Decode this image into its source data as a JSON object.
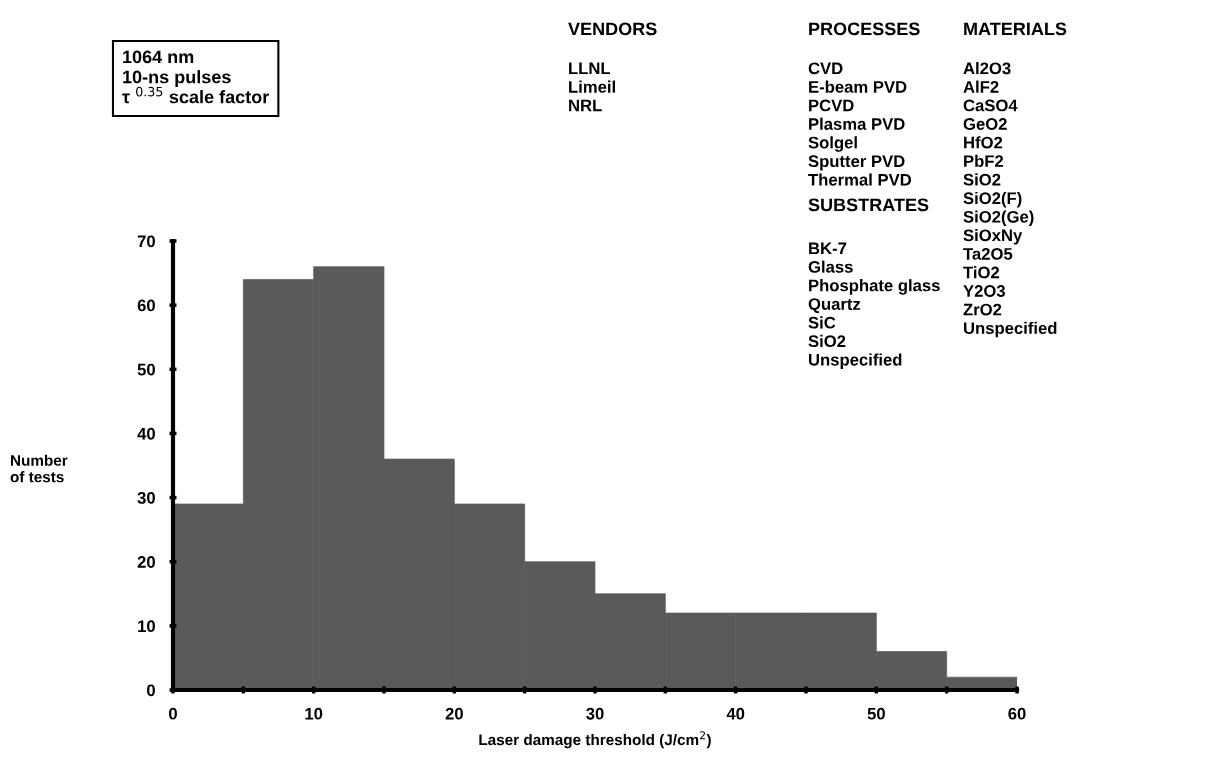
{
  "chart_data": {
    "type": "histogram",
    "xlabel": "Laser damage threshold (J/cm$^{2}$)",
    "ylabel": "Number\nof tests",
    "bins": [
      0,
      5,
      10,
      15,
      20,
      25,
      30,
      35,
      40,
      45,
      50,
      55,
      60
    ],
    "values": [
      29,
      64,
      66,
      36,
      29,
      20,
      15,
      12,
      12,
      12,
      6,
      2
    ],
    "color": "#5a5a5a",
    "xlim": [
      0,
      60
    ],
    "xticks": [
      0,
      {
        "value": 5,
        "label": null
      },
      10,
      {
        "value": 15,
        "label": null
      },
      20,
      {
        "value": 25,
        "label": null
      },
      30,
      {
        "value": 35,
        "label": null
      },
      40,
      {
        "value": 45,
        "label": null
      },
      50,
      {
        "value": 55,
        "label": null
      },
      60
    ],
    "ylim": [
      0,
      70
    ],
    "yticks": [
      0,
      10,
      20,
      30,
      40,
      50,
      60,
      70
    ],
    "grid": false,
    "legend": false,
    "annotations": [
      "1064 nm\n10-ns pulses\nτ $^{0.35}$ scale factor",
      "VENDORS",
      "LLNL\nLimeil\nNRL",
      "PROCESSES",
      "CVD\nE-beam PVD\nPCVD\nPlasma PVD\nSolgel\nSputter PVD\nThermal PVD",
      "SUBSTRATES",
      "BK-7\nGlass\nPhosphate glass\nQuartz\nSiC\nSiO2\nUnspecified",
      "MATERIALS",
      "Al2O3\nAlF2\nCaSO4\nGeO2\nHfO2\nPbF2\nSiO2\nSiO2(F)\nSiO2(Ge)\nSiOxNy\nTa2O5\nTiO2\nY2O3\nZrO2\nUnspecified"
    ]
  }
}
